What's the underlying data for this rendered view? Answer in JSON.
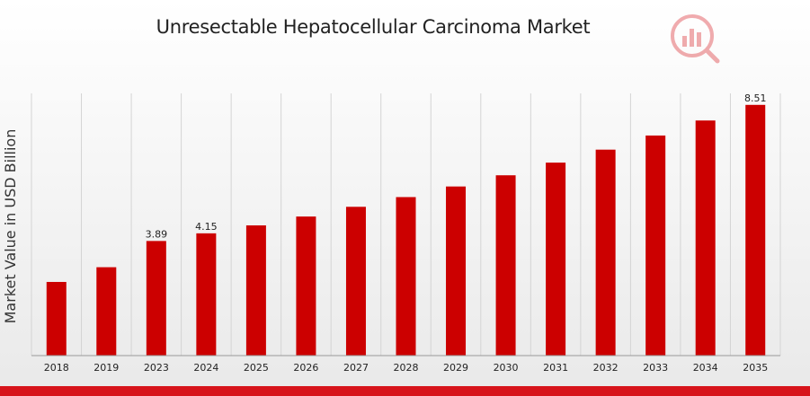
{
  "colors": {
    "bar": "#cc0000",
    "grid": "#d4d4d4",
    "accent": "#d7141b"
  },
  "logo": {
    "icon": "market-research-logo-icon"
  },
  "chart_data": {
    "type": "bar",
    "title": "Unresectable Hepatocellular Carcinoma Market",
    "xlabel": "",
    "ylabel": "Market Value in USD Billion",
    "ylim": [
      0,
      8.9
    ],
    "grid": {
      "vertical": true,
      "horizontal": false
    },
    "categories": [
      "2018",
      "2019",
      "2023",
      "2024",
      "2025",
      "2026",
      "2027",
      "2028",
      "2029",
      "2030",
      "2031",
      "2032",
      "2033",
      "2034",
      "2035"
    ],
    "values": [
      2.5,
      3.0,
      3.89,
      4.15,
      4.42,
      4.72,
      5.05,
      5.38,
      5.74,
      6.12,
      6.55,
      6.99,
      7.47,
      7.98,
      8.51
    ],
    "data_labels": [
      null,
      null,
      "3.89",
      "4.15",
      null,
      null,
      null,
      null,
      null,
      null,
      null,
      null,
      null,
      null,
      "8.51"
    ]
  }
}
